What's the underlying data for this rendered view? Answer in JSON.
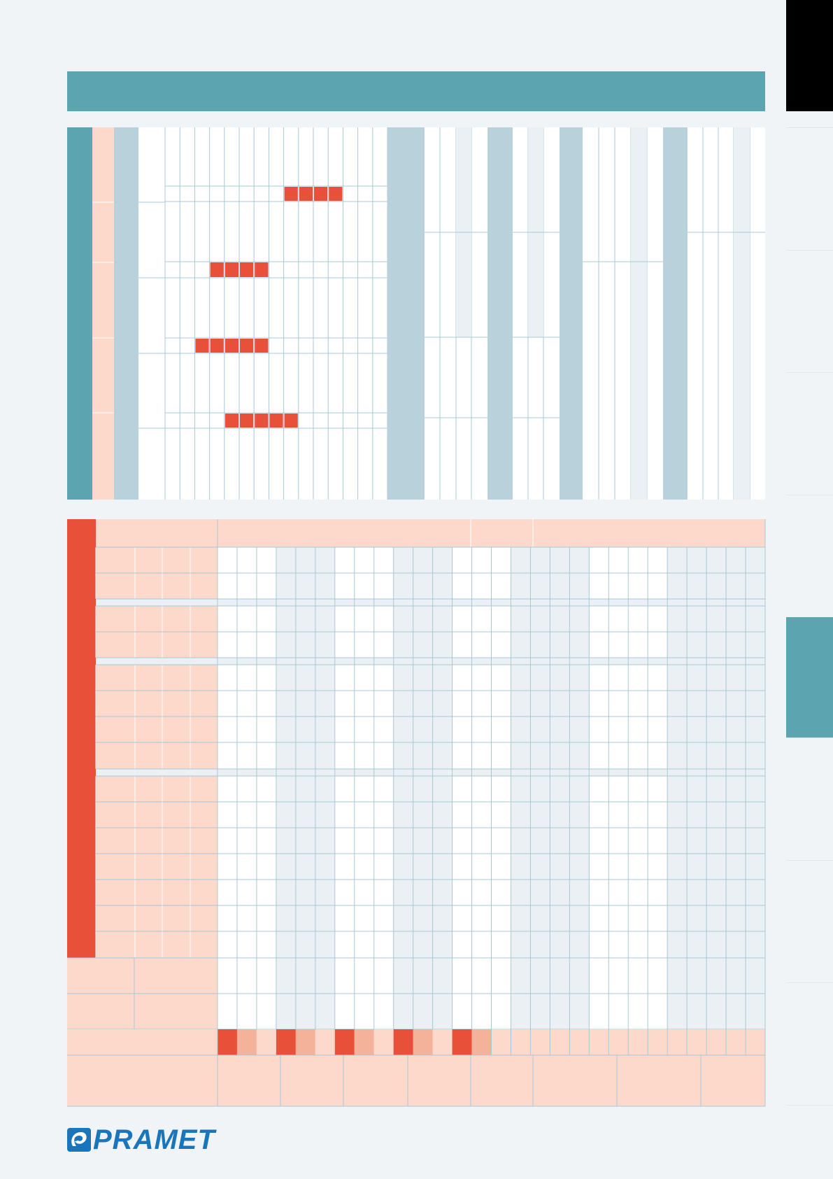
{
  "brand": {
    "logo_text": "PRAMET",
    "primary_color": "#1b75bb"
  },
  "colors": {
    "teal": "#5da4b1",
    "light_blue_grey": "#b8d1da",
    "salmon": "#fcd9cb",
    "red": "#e8503a",
    "light_salmon": "#f4b29b",
    "grid_line": "#a9c8d4",
    "light_grey": "#eaf0f4",
    "page_bg": "#f0f4f7",
    "white": "#ffffff",
    "black": "#000000"
  },
  "side_tabs": {
    "active_index": 4,
    "labels": [
      "",
      "",
      "",
      "",
      "",
      "",
      "",
      ""
    ]
  },
  "title_bar": {
    "text": ""
  }
}
